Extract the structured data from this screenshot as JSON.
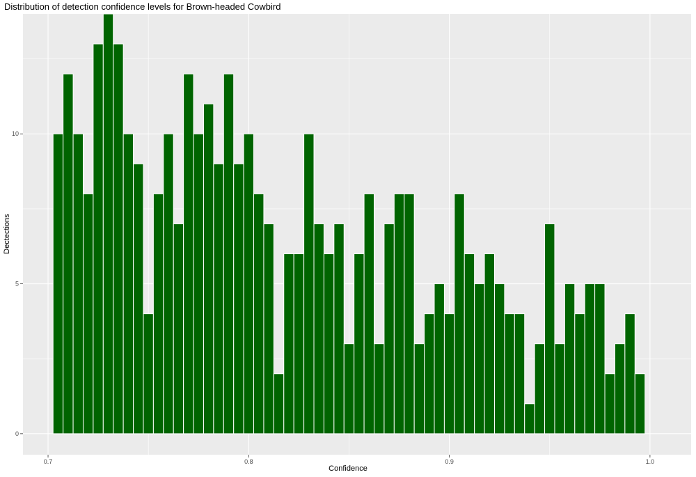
{
  "chart_data": {
    "type": "bar",
    "title": "Distribution of detection confidence levels for Brown-headed Cowbird",
    "xlabel": "Confidence",
    "ylabel": "Dectections",
    "xlim": [
      0.6875,
      1.0205
    ],
    "ylim": [
      -0.7,
      14.0
    ],
    "x_ticks": [
      0.7,
      0.8,
      0.9,
      1.0
    ],
    "x_tick_labels": [
      "0.7",
      "0.8",
      "0.9",
      "1.0"
    ],
    "y_ticks": [
      0,
      5,
      10
    ],
    "y_tick_labels": [
      "0",
      "5",
      "10"
    ],
    "grid": true,
    "bin_start": 0.7025,
    "bin_width": 0.005,
    "values": [
      10,
      12,
      10,
      8,
      13,
      14,
      13,
      10,
      9,
      4,
      8,
      10,
      7,
      12,
      10,
      11,
      9,
      12,
      9,
      10,
      8,
      7,
      2,
      6,
      6,
      10,
      7,
      6,
      7,
      3,
      6,
      8,
      3,
      7,
      8,
      8,
      3,
      4,
      5,
      4,
      8,
      6,
      5,
      6,
      5,
      4,
      4,
      1,
      3,
      7,
      3,
      5,
      4,
      5,
      5,
      2,
      3,
      4,
      2
    ],
    "colors": {
      "bar_fill": "#006400",
      "bar_stroke": "#ffffff",
      "panel": "#ebebeb",
      "grid": "#ffffff"
    }
  }
}
